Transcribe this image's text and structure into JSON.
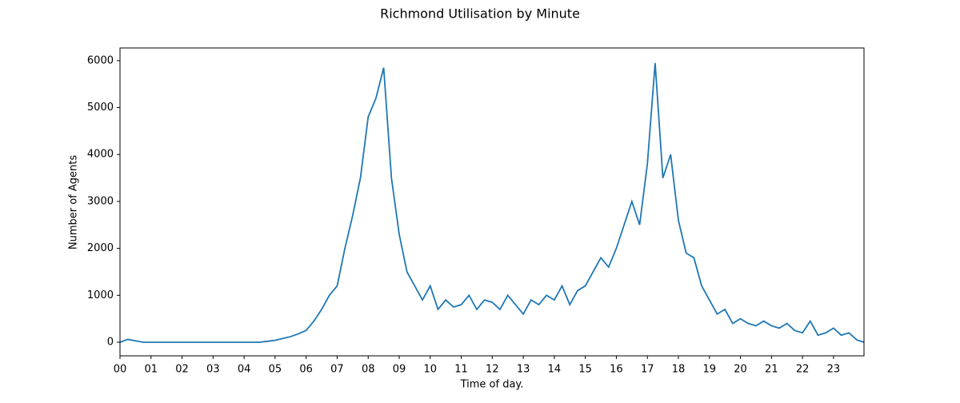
{
  "chart_data": {
    "type": "line",
    "title": "Richmond Utilisation by Minute",
    "x_label": "Time of day.",
    "y_label": "Number of Agents",
    "x": [
      0,
      0.25,
      0.5,
      0.75,
      1,
      1.25,
      1.5,
      1.75,
      2,
      2.25,
      2.5,
      2.75,
      3,
      3.25,
      3.5,
      3.75,
      4,
      4.25,
      4.5,
      4.75,
      5,
      5.25,
      5.5,
      5.75,
      6,
      6.25,
      6.5,
      6.75,
      7,
      7.25,
      7.5,
      7.75,
      8,
      8.25,
      8.5,
      8.75,
      9,
      9.25,
      9.5,
      9.75,
      10,
      10.25,
      10.5,
      10.75,
      11,
      11.25,
      11.5,
      11.75,
      12,
      12.25,
      12.5,
      12.75,
      13,
      13.25,
      13.5,
      13.75,
      14,
      14.25,
      14.5,
      14.75,
      15,
      15.25,
      15.5,
      15.75,
      16,
      16.25,
      16.5,
      16.75,
      17,
      17.25,
      17.5,
      17.75,
      18,
      18.25,
      18.5,
      18.75,
      19,
      19.25,
      19.5,
      19.75,
      20,
      20.25,
      20.5,
      20.75,
      21,
      21.25,
      21.5,
      21.75,
      22,
      22.25,
      22.5,
      22.75,
      23,
      23.25,
      23.5,
      23.75,
      23.98
    ],
    "series": [
      {
        "name": "Number of Agents",
        "color": "#1f77b4",
        "values": [
          0,
          60,
          30,
          0,
          0,
          0,
          0,
          0,
          0,
          0,
          0,
          0,
          0,
          0,
          0,
          0,
          0,
          0,
          0,
          20,
          40,
          80,
          120,
          180,
          250,
          450,
          700,
          1000,
          1200,
          2000,
          2700,
          3500,
          4800,
          5200,
          5850,
          3500,
          2300,
          1500,
          1200,
          900,
          1200,
          700,
          900,
          750,
          800,
          1000,
          700,
          900,
          850,
          700,
          1000,
          800,
          600,
          900,
          800,
          1000,
          900,
          1200,
          800,
          1100,
          1200,
          1500,
          1800,
          1600,
          2000,
          2500,
          3000,
          2500,
          3800,
          5950,
          3500,
          4000,
          2600,
          1900,
          1800,
          1200,
          900,
          600,
          700,
          400,
          500,
          400,
          350,
          450,
          350,
          300,
          400,
          250,
          200,
          450,
          150,
          200,
          300,
          150,
          200,
          50,
          0
        ]
      }
    ],
    "xlim": [
      0,
      23.983
    ],
    "ylim": [
      -290,
      6270
    ],
    "xticks": [
      {
        "value": 0,
        "label": "00"
      },
      {
        "value": 1,
        "label": "01"
      },
      {
        "value": 2,
        "label": "02"
      },
      {
        "value": 3,
        "label": "03"
      },
      {
        "value": 4,
        "label": "04"
      },
      {
        "value": 5,
        "label": "05"
      },
      {
        "value": 6,
        "label": "06"
      },
      {
        "value": 7,
        "label": "07"
      },
      {
        "value": 8,
        "label": "08"
      },
      {
        "value": 9,
        "label": "09"
      },
      {
        "value": 10,
        "label": "10"
      },
      {
        "value": 11,
        "label": "11"
      },
      {
        "value": 12,
        "label": "12"
      },
      {
        "value": 13,
        "label": "13"
      },
      {
        "value": 14,
        "label": "14"
      },
      {
        "value": 15,
        "label": "15"
      },
      {
        "value": 16,
        "label": "16"
      },
      {
        "value": 17,
        "label": "17"
      },
      {
        "value": 18,
        "label": "18"
      },
      {
        "value": 19,
        "label": "19"
      },
      {
        "value": 20,
        "label": "20"
      },
      {
        "value": 21,
        "label": "21"
      },
      {
        "value": 22,
        "label": "22"
      },
      {
        "value": 23,
        "label": "23"
      }
    ],
    "yticks": [
      0,
      1000,
      2000,
      3000,
      4000,
      5000,
      6000
    ]
  }
}
